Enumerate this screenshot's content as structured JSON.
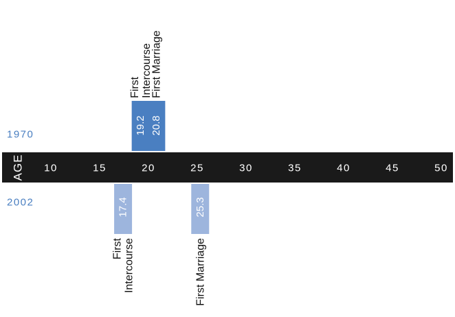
{
  "chart_data": {
    "type": "bar",
    "axis_label": "AGE",
    "ticks": [
      10,
      15,
      20,
      25,
      30,
      35,
      40,
      45,
      50
    ],
    "xlim": [
      7,
      53
    ],
    "series": [
      {
        "name": "1970",
        "position": "above",
        "color": "#4a7fc1",
        "points": [
          {
            "value": 19.2,
            "value_label": "19.2",
            "label_lines": [
              "First",
              "Intercourse"
            ]
          },
          {
            "value": 20.8,
            "value_label": "20.8",
            "label_lines": [
              "First Marriage"
            ]
          }
        ]
      },
      {
        "name": "2002",
        "position": "below",
        "color": "#9db5dd",
        "points": [
          {
            "value": 17.4,
            "value_label": "17.4",
            "label_lines": [
              "First",
              "Intercourse"
            ]
          },
          {
            "value": 25.3,
            "value_label": "25.3",
            "label_lines": [
              "First Marriage"
            ]
          }
        ]
      }
    ],
    "colors": {
      "axis_band": "#1a1a1a",
      "year_label": "#4a7fc1",
      "event_text": "#111111"
    }
  }
}
